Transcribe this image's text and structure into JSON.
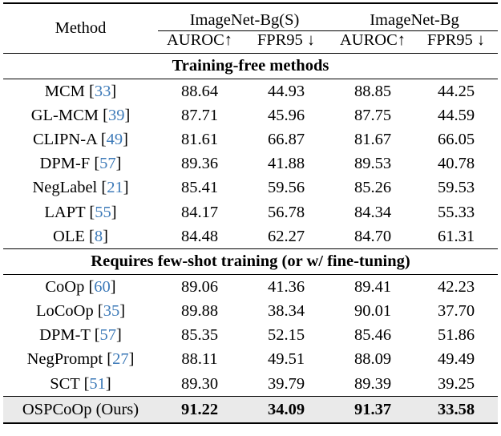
{
  "header": {
    "method": "Method",
    "group1": "ImageNet-Bg(S)",
    "group2": "ImageNet-Bg",
    "metrics": [
      "AUROC↑",
      "FPR95 ↓",
      "AUROC↑",
      "FPR95 ↓"
    ]
  },
  "sections": [
    {
      "title": "Training-free methods",
      "rows": [
        {
          "name": "MCM",
          "ref": "33",
          "values": [
            "88.64",
            "44.93",
            "88.85",
            "44.25"
          ]
        },
        {
          "name": "GL-MCM",
          "ref": "39",
          "values": [
            "87.71",
            "45.96",
            "87.75",
            "44.59"
          ]
        },
        {
          "name": "CLIPN-A",
          "ref": "49",
          "values": [
            "81.61",
            "66.87",
            "81.67",
            "66.05"
          ]
        },
        {
          "name": "DPM-F",
          "ref": "57",
          "values": [
            "89.36",
            "41.88",
            "89.53",
            "40.78"
          ]
        },
        {
          "name": "NegLabel",
          "ref": "21",
          "values": [
            "85.41",
            "59.56",
            "85.26",
            "59.53"
          ]
        },
        {
          "name": "LAPT",
          "ref": "55",
          "values": [
            "84.17",
            "56.78",
            "84.34",
            "55.33"
          ]
        },
        {
          "name": "OLE",
          "ref": "8",
          "values": [
            "84.48",
            "62.27",
            "84.70",
            "61.31"
          ]
        }
      ]
    },
    {
      "title": "Requires few-shot training (or w/ fine-tuning)",
      "rows": [
        {
          "name": "CoOp",
          "ref": "60",
          "values": [
            "89.06",
            "41.36",
            "89.41",
            "42.23"
          ]
        },
        {
          "name": "LoCoOp",
          "ref": "35",
          "values": [
            "89.88",
            "38.34",
            "90.01",
            "37.70"
          ]
        },
        {
          "name": "DPM-T",
          "ref": "57",
          "values": [
            "85.35",
            "52.15",
            "85.46",
            "51.86"
          ]
        },
        {
          "name": "NegPrompt",
          "ref": "27",
          "values": [
            "88.11",
            "49.51",
            "88.09",
            "49.49"
          ]
        },
        {
          "name": "SCT",
          "ref": "51",
          "values": [
            "89.30",
            "39.79",
            "89.39",
            "39.25"
          ]
        }
      ]
    }
  ],
  "ours": {
    "name": "OSPCoOp (Ours)",
    "values": [
      "91.22",
      "34.09",
      "91.37",
      "33.58"
    ]
  },
  "colors": {
    "citation": "#3d7ab8",
    "highlight_row_bg": "#eaeaea"
  }
}
